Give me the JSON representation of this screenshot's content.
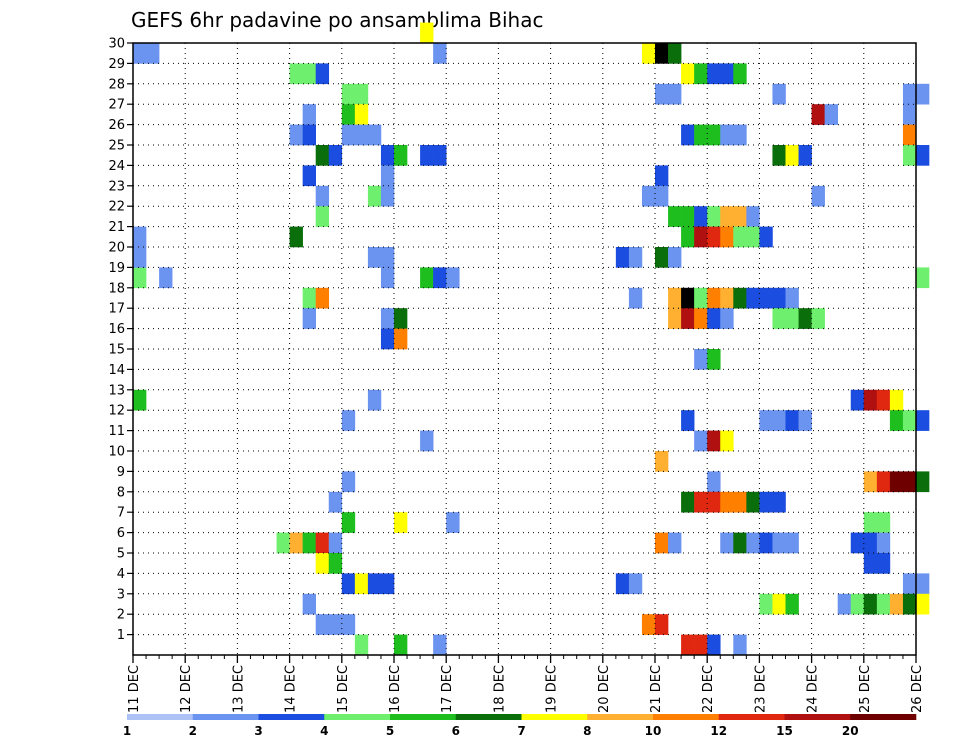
{
  "chart_data": {
    "type": "heatmap",
    "title": "GEFS 6hr padavine po ansamblima Bihac",
    "xlabel": "",
    "ylabel": "",
    "x_tick_labels": [
      "11 DEC",
      "12 DEC",
      "13 DEC",
      "14 DEC",
      "15 DEC",
      "16 DEC",
      "17 DEC",
      "18 DEC",
      "19 DEC",
      "20 DEC",
      "21 DEC",
      "22 DEC",
      "23 DEC",
      "24 DEC",
      "25 DEC",
      "26 DEC"
    ],
    "y_tick_labels": [
      "1",
      "2",
      "3",
      "4",
      "5",
      "6",
      "7",
      "8",
      "9",
      "10",
      "11",
      "12",
      "13",
      "14",
      "15",
      "16",
      "17",
      "18",
      "19",
      "20",
      "21",
      "22",
      "23",
      "24",
      "25",
      "26",
      "27",
      "28",
      "29",
      "30"
    ],
    "xlim": [
      0,
      60
    ],
    "ylim": [
      0,
      30
    ],
    "x_unit": "6-hour step from 11 DEC 00Z (4 steps per day)",
    "grid": true,
    "colorbar": {
      "placement": "bottom",
      "labels": [
        "1",
        "2",
        "3",
        "4",
        "5",
        "6",
        "7",
        "8",
        "10",
        "12",
        "15",
        "20"
      ],
      "colors": [
        "#aec3f5",
        "#6b93f0",
        "#1a4de0",
        "#6ef06e",
        "#1ebe1e",
        "#0a6e0a",
        "#ffff00",
        "#ffb030",
        "#ff7f00",
        "#e02810",
        "#b01010",
        "#6e0000"
      ]
    },
    "cells": [
      [
        0,
        29,
        1
      ],
      [
        0,
        20,
        1
      ],
      [
        0,
        18,
        3
      ],
      [
        0,
        12,
        4
      ],
      [
        12,
        28,
        3
      ],
      [
        13,
        28,
        3
      ],
      [
        14,
        28,
        2
      ],
      [
        16,
        27,
        3
      ],
      [
        17,
        27,
        3
      ],
      [
        13,
        26,
        1
      ],
      [
        16,
        26,
        4
      ],
      [
        17,
        26,
        6
      ],
      [
        12,
        25,
        1
      ],
      [
        13,
        25,
        2
      ],
      [
        16,
        25,
        1
      ],
      [
        17,
        25,
        1
      ],
      [
        18,
        25,
        1
      ],
      [
        14,
        24,
        5
      ],
      [
        15,
        24,
        2
      ],
      [
        19,
        24,
        2
      ],
      [
        20,
        24,
        4
      ],
      [
        22,
        24,
        2
      ],
      [
        23,
        24,
        2
      ],
      [
        13,
        23,
        2
      ],
      [
        19,
        23,
        1
      ],
      [
        14,
        22,
        1
      ],
      [
        18,
        22,
        3
      ],
      [
        19,
        22,
        1
      ],
      [
        14,
        21,
        3
      ],
      [
        12,
        20,
        5
      ],
      [
        18,
        19,
        1
      ],
      [
        19,
        19,
        1
      ],
      [
        19,
        18,
        1
      ],
      [
        22,
        18,
        4
      ],
      [
        23,
        18,
        2
      ],
      [
        24,
        18,
        1
      ],
      [
        13,
        17,
        3
      ],
      [
        14,
        17,
        8
      ],
      [
        13,
        16,
        1
      ],
      [
        19,
        16,
        1
      ],
      [
        20,
        16,
        5
      ],
      [
        19,
        15,
        2
      ],
      [
        20,
        15,
        8
      ],
      [
        18,
        12,
        1
      ],
      [
        16,
        11,
        1
      ],
      [
        22,
        10,
        1
      ],
      [
        16,
        8,
        1
      ],
      [
        15,
        7,
        1
      ],
      [
        16,
        6,
        4
      ],
      [
        20,
        6,
        6
      ],
      [
        24,
        6,
        1
      ],
      [
        11,
        5,
        3
      ],
      [
        12,
        5,
        7
      ],
      [
        13,
        5,
        4
      ],
      [
        14,
        5,
        9
      ],
      [
        15,
        5,
        1
      ],
      [
        14,
        4,
        6
      ],
      [
        15,
        4,
        4
      ],
      [
        16,
        3,
        2
      ],
      [
        17,
        3,
        6
      ],
      [
        18,
        3,
        2
      ],
      [
        19,
        3,
        2
      ],
      [
        13,
        2,
        1
      ],
      [
        14,
        1,
        1
      ],
      [
        15,
        1,
        1
      ],
      [
        16,
        1,
        1
      ],
      [
        17,
        0,
        3
      ],
      [
        20,
        0,
        4
      ],
      [
        23,
        0,
        1
      ],
      [
        22,
        30,
        6
      ],
      [
        23,
        29,
        1
      ],
      [
        1,
        29,
        1
      ],
      [
        0,
        19,
        1
      ],
      [
        2,
        18,
        1
      ],
      [
        39,
        29,
        6
      ],
      [
        40,
        29,
        12
      ],
      [
        41,
        29,
        5
      ],
      [
        42,
        28,
        6
      ],
      [
        43,
        28,
        4
      ],
      [
        44,
        28,
        2
      ],
      [
        45,
        28,
        2
      ],
      [
        46,
        28,
        4
      ],
      [
        40,
        27,
        1
      ],
      [
        41,
        27,
        1
      ],
      [
        49,
        27,
        1
      ],
      [
        59,
        27,
        1
      ],
      [
        60,
        27,
        1
      ],
      [
        52,
        26,
        10
      ],
      [
        53,
        26,
        1
      ],
      [
        59,
        26,
        1
      ],
      [
        42,
        25,
        2
      ],
      [
        43,
        25,
        4
      ],
      [
        44,
        25,
        4
      ],
      [
        45,
        25,
        1
      ],
      [
        46,
        25,
        1
      ],
      [
        59,
        25,
        8
      ],
      [
        49,
        24,
        5
      ],
      [
        50,
        24,
        6
      ],
      [
        51,
        24,
        2
      ],
      [
        59,
        24,
        3
      ],
      [
        60,
        24,
        2
      ],
      [
        40,
        23,
        2
      ],
      [
        39,
        22,
        1
      ],
      [
        40,
        22,
        1
      ],
      [
        52,
        22,
        1
      ],
      [
        41,
        21,
        4
      ],
      [
        42,
        21,
        4
      ],
      [
        43,
        21,
        2
      ],
      [
        44,
        21,
        3
      ],
      [
        45,
        21,
        7
      ],
      [
        46,
        21,
        7
      ],
      [
        47,
        21,
        1
      ],
      [
        42,
        20,
        4
      ],
      [
        43,
        20,
        10
      ],
      [
        44,
        20,
        9
      ],
      [
        45,
        20,
        8
      ],
      [
        46,
        20,
        3
      ],
      [
        47,
        20,
        3
      ],
      [
        48,
        20,
        2
      ],
      [
        37,
        19,
        2
      ],
      [
        38,
        19,
        1
      ],
      [
        40,
        19,
        5
      ],
      [
        41,
        19,
        1
      ],
      [
        60,
        18,
        3
      ],
      [
        38,
        17,
        1
      ],
      [
        41,
        17,
        7
      ],
      [
        42,
        17,
        12
      ],
      [
        43,
        17,
        3
      ],
      [
        44,
        17,
        8
      ],
      [
        45,
        17,
        7
      ],
      [
        46,
        17,
        5
      ],
      [
        47,
        17,
        2
      ],
      [
        48,
        17,
        2
      ],
      [
        49,
        17,
        2
      ],
      [
        50,
        17,
        1
      ],
      [
        41,
        16,
        7
      ],
      [
        42,
        16,
        10
      ],
      [
        43,
        16,
        8
      ],
      [
        44,
        16,
        2
      ],
      [
        45,
        16,
        1
      ],
      [
        49,
        16,
        3
      ],
      [
        50,
        16,
        3
      ],
      [
        51,
        16,
        5
      ],
      [
        52,
        16,
        3
      ],
      [
        43,
        14,
        1
      ],
      [
        44,
        14,
        4
      ],
      [
        55,
        12,
        2
      ],
      [
        56,
        12,
        10
      ],
      [
        57,
        12,
        9
      ],
      [
        58,
        12,
        6
      ],
      [
        42,
        11,
        2
      ],
      [
        48,
        11,
        1
      ],
      [
        49,
        11,
        1
      ],
      [
        50,
        11,
        2
      ],
      [
        51,
        11,
        1
      ],
      [
        58,
        11,
        4
      ],
      [
        59,
        11,
        3
      ],
      [
        60,
        11,
        2
      ],
      [
        43,
        10,
        1
      ],
      [
        44,
        10,
        10
      ],
      [
        45,
        10,
        6
      ],
      [
        40,
        9,
        7
      ],
      [
        44,
        8,
        1
      ],
      [
        56,
        8,
        7
      ],
      [
        57,
        8,
        9
      ],
      [
        58,
        8,
        11
      ],
      [
        59,
        8,
        11
      ],
      [
        60,
        8,
        5
      ],
      [
        42,
        7,
        5
      ],
      [
        43,
        7,
        9
      ],
      [
        44,
        7,
        9
      ],
      [
        45,
        7,
        8
      ],
      [
        46,
        7,
        8
      ],
      [
        47,
        7,
        5
      ],
      [
        48,
        7,
        2
      ],
      [
        49,
        7,
        2
      ],
      [
        56,
        6,
        3
      ],
      [
        57,
        6,
        3
      ],
      [
        40,
        5,
        8
      ],
      [
        41,
        5,
        1
      ],
      [
        45,
        5,
        1
      ],
      [
        46,
        5,
        5
      ],
      [
        47,
        5,
        1
      ],
      [
        48,
        5,
        2
      ],
      [
        49,
        5,
        1
      ],
      [
        50,
        5,
        1
      ],
      [
        55,
        5,
        2
      ],
      [
        56,
        5,
        2
      ],
      [
        57,
        5,
        1
      ],
      [
        56,
        4,
        2
      ],
      [
        57,
        4,
        2
      ],
      [
        59,
        3,
        1
      ],
      [
        60,
        3,
        1
      ],
      [
        37,
        3,
        2
      ],
      [
        38,
        3,
        1
      ],
      [
        48,
        2,
        3
      ],
      [
        49,
        2,
        6
      ],
      [
        50,
        2,
        4
      ],
      [
        54,
        2,
        1
      ],
      [
        55,
        2,
        3
      ],
      [
        56,
        2,
        5
      ],
      [
        57,
        2,
        3
      ],
      [
        58,
        2,
        7
      ],
      [
        59,
        2,
        5
      ],
      [
        60,
        2,
        6
      ],
      [
        39,
        1,
        8
      ],
      [
        40,
        1,
        9
      ],
      [
        42,
        0,
        9
      ],
      [
        43,
        0,
        9
      ],
      [
        44,
        0,
        2
      ],
      [
        46,
        0,
        1
      ]
    ]
  }
}
